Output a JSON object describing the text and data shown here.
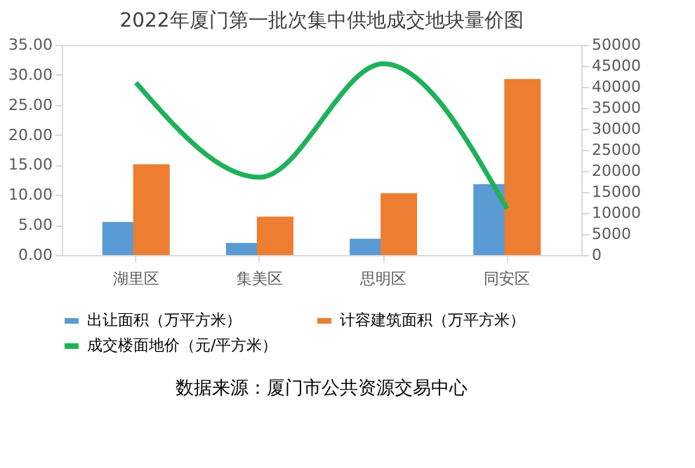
{
  "chart_data": {
    "type": "bar",
    "title": "2022年厦门第一批次集中供地成交地块量价图",
    "categories": [
      "湖里区",
      "集美区",
      "思明区",
      "同安区"
    ],
    "series": [
      {
        "name": "出让面积（万平方米）",
        "color": "#5b9bd5",
        "values": [
          5.5,
          2.0,
          2.7,
          11.8
        ]
      },
      {
        "name": "计容建筑面积（万平方米）",
        "color": "#ed7d31",
        "values": [
          15.1,
          6.4,
          10.3,
          29.3
        ]
      },
      {
        "name": "成交楼面地价（元/平方米）",
        "color": "#1fb15a",
        "type": "line",
        "axis": "y2",
        "values": [
          41000,
          18500,
          45500,
          11000
        ]
      }
    ],
    "ylim": [
      0,
      35
    ],
    "yticks": [
      {
        "value": 0,
        "label": "0.00"
      },
      {
        "value": 5,
        "label": "5.00"
      },
      {
        "value": 10,
        "label": "10.00"
      },
      {
        "value": 15,
        "label": "15.00"
      },
      {
        "value": 20,
        "label": "20.00"
      },
      {
        "value": 25,
        "label": "25.00"
      },
      {
        "value": 30,
        "label": "30.00"
      },
      {
        "value": 35,
        "label": "35.00"
      }
    ],
    "y2lim": [
      0,
      50000
    ],
    "y2ticks": [
      0,
      5000,
      10000,
      15000,
      20000,
      25000,
      30000,
      35000,
      40000,
      45000,
      50000
    ],
    "legend": "bottom",
    "grid": false,
    "annotations": [
      "数据来源：厦门市公共资源交易中心"
    ]
  }
}
